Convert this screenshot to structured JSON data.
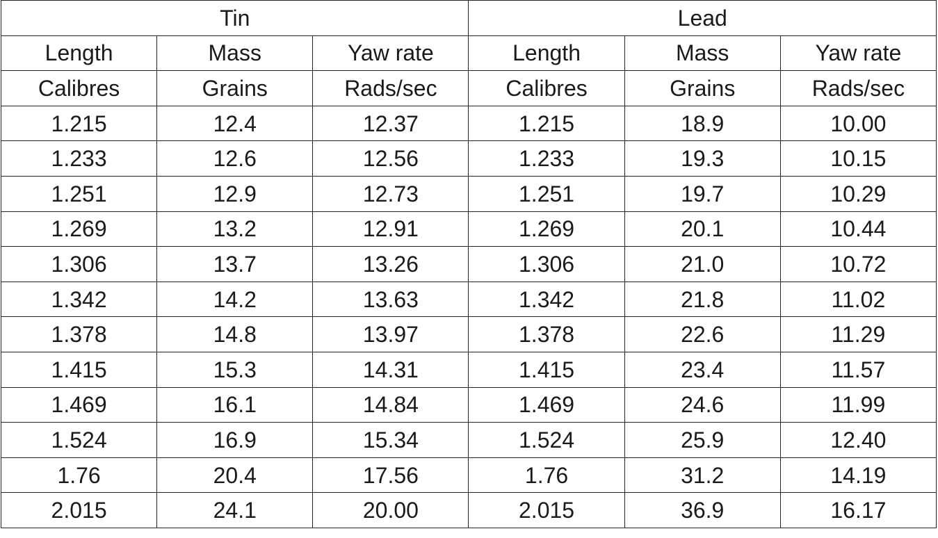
{
  "table": {
    "groups": [
      "Tin",
      "Lead"
    ],
    "header": [
      [
        "Length",
        "Mass",
        "Yaw rate",
        "Length",
        "Mass",
        "Yaw rate"
      ],
      [
        "Calibres",
        "Grains",
        "Rads/sec",
        "Calibres",
        "Grains",
        "Rads/sec"
      ]
    ],
    "rows": [
      [
        "1.215",
        "12.4",
        "12.37",
        "1.215",
        "18.9",
        "10.00"
      ],
      [
        "1.233",
        "12.6",
        "12.56",
        "1.233",
        "19.3",
        "10.15"
      ],
      [
        "1.251",
        "12.9",
        "12.73",
        "1.251",
        "19.7",
        "10.29"
      ],
      [
        "1.269",
        "13.2",
        "12.91",
        "1.269",
        "20.1",
        "10.44"
      ],
      [
        "1.306",
        "13.7",
        "13.26",
        "1.306",
        "21.0",
        "10.72"
      ],
      [
        "1.342",
        "14.2",
        "13.63",
        "1.342",
        "21.8",
        "11.02"
      ],
      [
        "1.378",
        "14.8",
        "13.97",
        "1.378",
        "22.6",
        "11.29"
      ],
      [
        "1.415",
        "15.3",
        "14.31",
        "1.415",
        "23.4",
        "11.57"
      ],
      [
        "1.469",
        "16.1",
        "14.84",
        "1.469",
        "24.6",
        "11.99"
      ],
      [
        "1.524",
        "16.9",
        "15.34",
        "1.524",
        "25.9",
        "12.40"
      ],
      [
        "1.76",
        "20.4",
        "17.56",
        "1.76",
        "31.2",
        "14.19"
      ],
      [
        "2.015",
        "24.1",
        "20.00",
        "2.015",
        "36.9",
        "16.17"
      ]
    ]
  }
}
